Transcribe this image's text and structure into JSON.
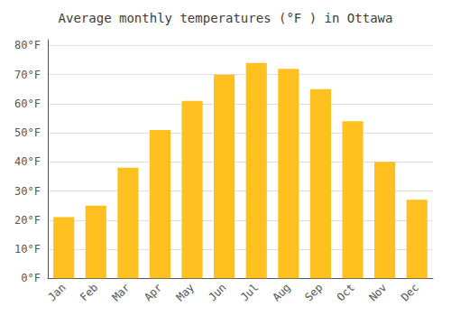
{
  "chart_data": {
    "type": "bar",
    "title": "Average monthly temperatures (°F ) in Ottawa",
    "categories": [
      "Jan",
      "Feb",
      "Mar",
      "Apr",
      "May",
      "Jun",
      "Jul",
      "Aug",
      "Sep",
      "Oct",
      "Nov",
      "Dec"
    ],
    "values": [
      21,
      25,
      38,
      51,
      61,
      70,
      74,
      72,
      65,
      54,
      40,
      27
    ],
    "color": "#FFC020",
    "ylim": [
      0,
      82
    ],
    "yticks": [
      {
        "value": 0,
        "label": "0°F"
      },
      {
        "value": 10,
        "label": "10°F"
      },
      {
        "value": 20,
        "label": "20°F"
      },
      {
        "value": 30,
        "label": "30°F"
      },
      {
        "value": 40,
        "label": "40°F"
      },
      {
        "value": 50,
        "label": "50°F"
      },
      {
        "value": 60,
        "label": "60°F"
      },
      {
        "value": 70,
        "label": "70°F"
      },
      {
        "value": 80,
        "label": "80°F"
      }
    ],
    "grid": true
  }
}
